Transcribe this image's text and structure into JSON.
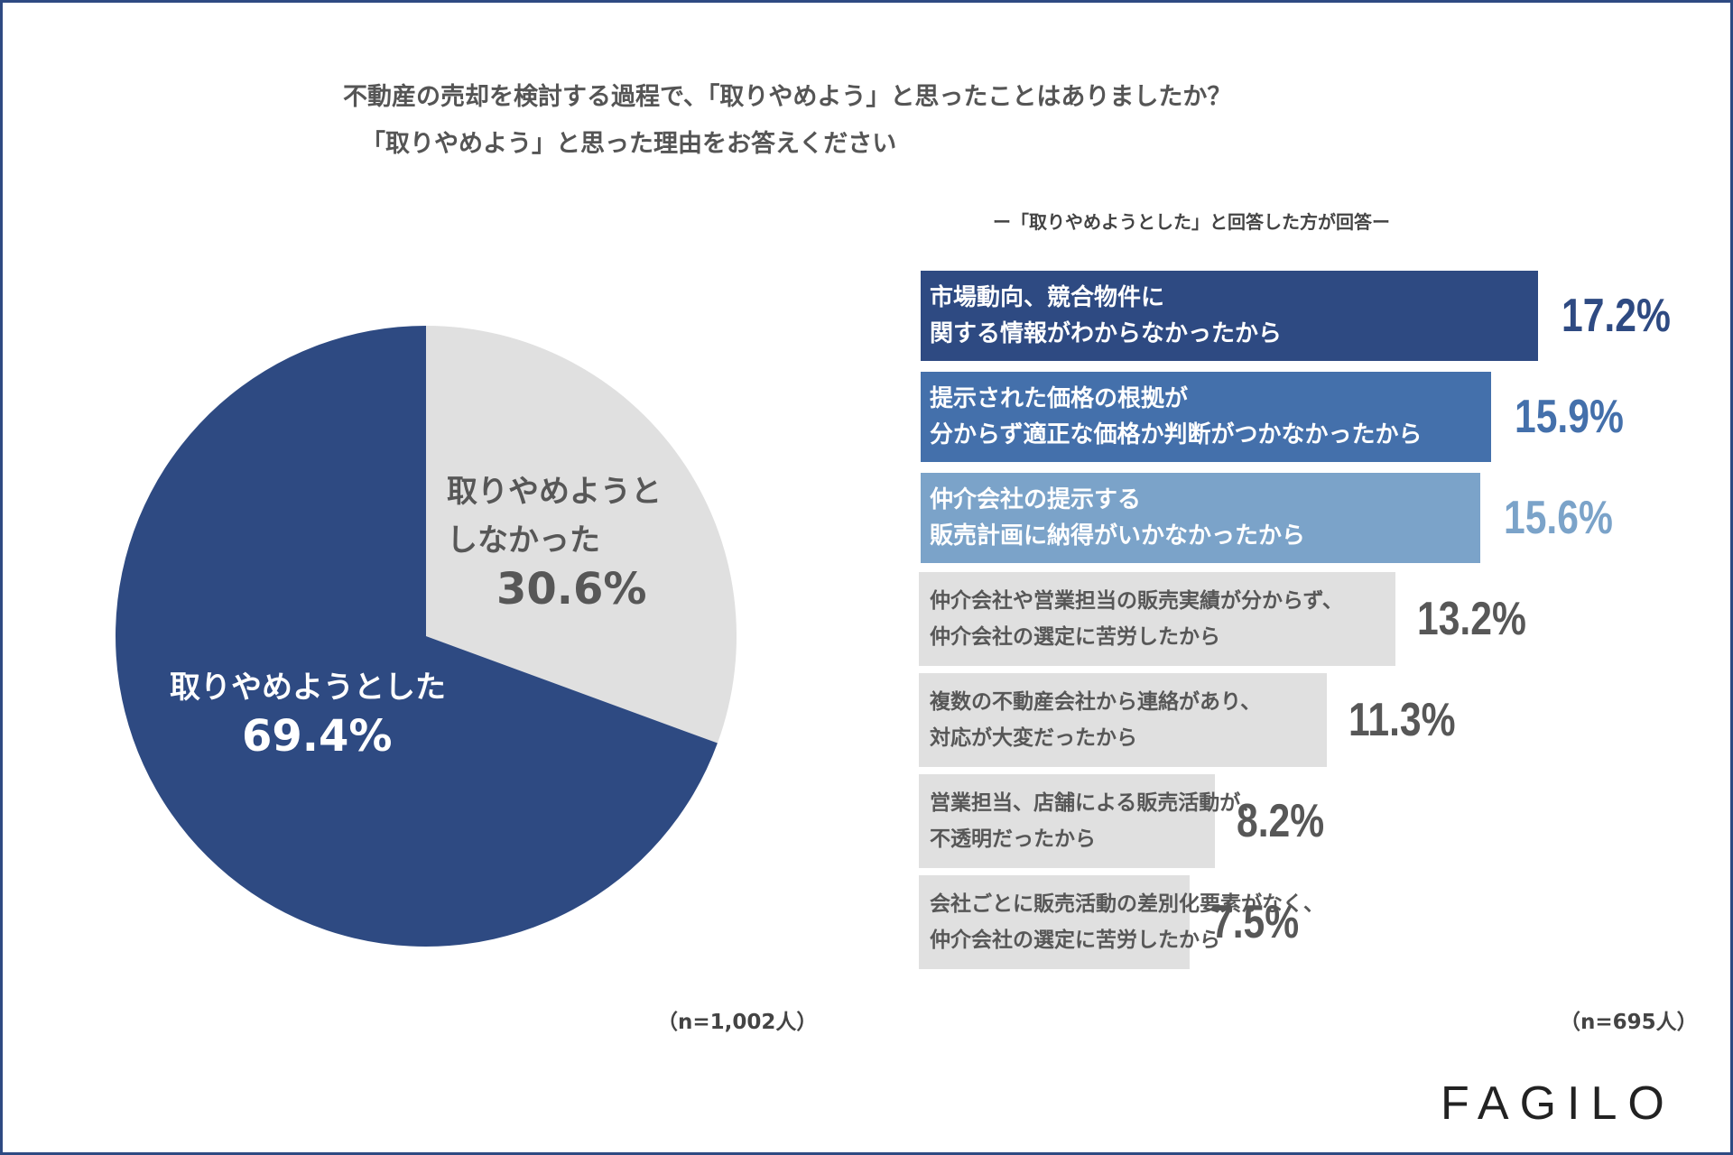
{
  "title": {
    "line1": "不動産の売却を検討する過程で、「取りやめよう」と思ったことはありましたか？",
    "line2": "「取りやめよう」と思った理由をお答えください"
  },
  "subnote": "ー「取りやめようとした」と回答した方が回答ー",
  "pie": {
    "n_label": "（n=1,002人）",
    "slices": [
      {
        "label_line1": "取りやめようと",
        "label_line2": "しなかった",
        "label": "取りやめようとしなかった",
        "value": 30.6,
        "value_text": "30.6%",
        "color": "#e0e0e0",
        "text_color": "#575757"
      },
      {
        "label_line1": "取りやめようとした",
        "label_line2": "",
        "label": "取りやめようとした",
        "value": 69.4,
        "value_text": "69.4%",
        "color": "#2e4a82",
        "text_color": "#ffffff"
      }
    ]
  },
  "bars": {
    "n_label": "（n=695人）"
  },
  "chart_data": [
    {
      "type": "pie",
      "title": "不動産の売却を検討する過程で、「取りやめよう」と思ったことはありましたか？",
      "categories": [
        "取りやめようとしなかった",
        "取りやめようとした"
      ],
      "values": [
        30.6,
        69.4
      ],
      "unit": "%",
      "n": "（n=1,002人）"
    },
    {
      "type": "bar",
      "orientation": "horizontal",
      "title": "「取りやめよう」と思った理由をお答えください",
      "subtitle": "ー「取りやめようとした」と回答した方が回答ー",
      "categories": [
        [
          "市場動向、競合物件に",
          "関する情報がわからなかったから"
        ],
        [
          "提示された価格の根拠が",
          "分からず適正な価格か判断がつかなかったから"
        ],
        [
          "仲介会社の提示する",
          "販売計画に納得がいかなかったから"
        ],
        [
          "仲介会社や営業担当の販売実績が分からず、",
          "仲介会社の選定に苦労したから"
        ],
        [
          "複数の不動産会社から連絡があり、",
          "対応が大変だったから"
        ],
        [
          "営業担当、店舗による販売活動が、",
          "不透明だったから"
        ],
        [
          "会社ごとに販売活動の差別化要素がなく、",
          "仲介会社の選定に苦労したから"
        ]
      ],
      "values": [
        17.2,
        15.9,
        15.6,
        13.2,
        11.3,
        8.2,
        7.5
      ],
      "value_labels": [
        "17.2%",
        "15.9%",
        "15.6%",
        "13.2%",
        "11.3%",
        "8.2%",
        "7.5%"
      ],
      "bar_colors": [
        "#2e4a82",
        "#4470ab",
        "#7ba3c9",
        "#e0e0e0",
        "#e0e0e0",
        "#e0e0e0",
        "#e0e0e0"
      ],
      "label_colors": [
        "#ffffff",
        "#ffffff",
        "#ffffff",
        "#575757",
        "#575757",
        "#575757",
        "#575757"
      ],
      "value_colors": [
        "#2e4a82",
        "#4470ab",
        "#7ba3c9",
        "#575757",
        "#575757",
        "#575757",
        "#575757"
      ],
      "unit": "%",
      "n": "（n=695人）"
    }
  ],
  "logo": "FAGILO"
}
